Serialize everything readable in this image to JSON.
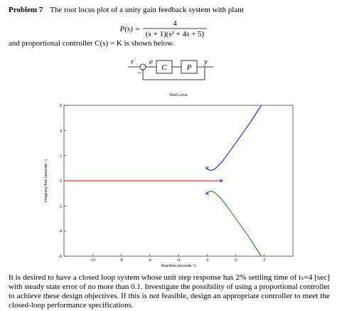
{
  "problem": {
    "label": "Problem 7",
    "intro": "The root locus plot of a unity gain feedback system with plant",
    "plant_lhs": "P(s) =",
    "plant_num": "4",
    "plant_den": "(s + 1)(s² + 4s + 5)",
    "controller": "and proportional controller C(s) = K is shown below."
  },
  "diagram": {
    "r": "r",
    "e": "e",
    "c": "C",
    "p": "P",
    "y": "y",
    "minus": "−"
  },
  "chart_data": {
    "type": "line",
    "title": "Root Locus",
    "x_label": "Real Axis (seconds⁻¹)",
    "y_label": "Imaginary Axis (seconds⁻¹)",
    "xlim": [
      -12,
      4
    ],
    "ylim": [
      -6,
      6
    ],
    "xticks": [
      -10,
      -8,
      -6,
      -4,
      -2,
      0,
      2
    ],
    "yticks": [
      -6,
      -4,
      -2,
      0,
      2,
      4,
      6
    ],
    "series": [
      {
        "color": "#ff0000",
        "x": [
          -12,
          -1
        ],
        "y": [
          0,
          0
        ]
      },
      {
        "color": "#0000ff",
        "x": [
          -2,
          -1.9,
          -1.75,
          -1.6,
          -1.4,
          -1.0,
          -0.5,
          0,
          0.5,
          1,
          1.5,
          1.8
        ],
        "y": [
          1,
          0.88,
          0.82,
          0.85,
          1.0,
          1.45,
          2.2,
          3,
          3.8,
          4.6,
          5.5,
          6
        ]
      },
      {
        "color": "#008000",
        "x": [
          -2,
          -1.9,
          -1.75,
          -1.6,
          -1.4,
          -1.0,
          -0.5,
          0,
          0.5,
          1,
          1.5,
          1.8
        ],
        "y": [
          -1,
          -0.88,
          -0.82,
          -0.85,
          -1.0,
          -1.45,
          -2.2,
          -3,
          -3.8,
          -4.6,
          -5.5,
          -6
        ]
      }
    ],
    "poles": {
      "color": "#0000ff",
      "x": [
        -1,
        -2,
        -2
      ],
      "y": [
        0,
        1,
        -1
      ]
    }
  },
  "question": {
    "lines": [
      "It is desired to have a closed loop system whose unit step response has 2% settling time of tₛ=4 [sec]",
      "with steady state error of no more than 0.1. Investigate the possibility of using a proportional controller",
      "to achieve these design objectives. If this is not feasible, design an appropriate controller to meet the",
      "closed-loop performance specifications."
    ]
  }
}
